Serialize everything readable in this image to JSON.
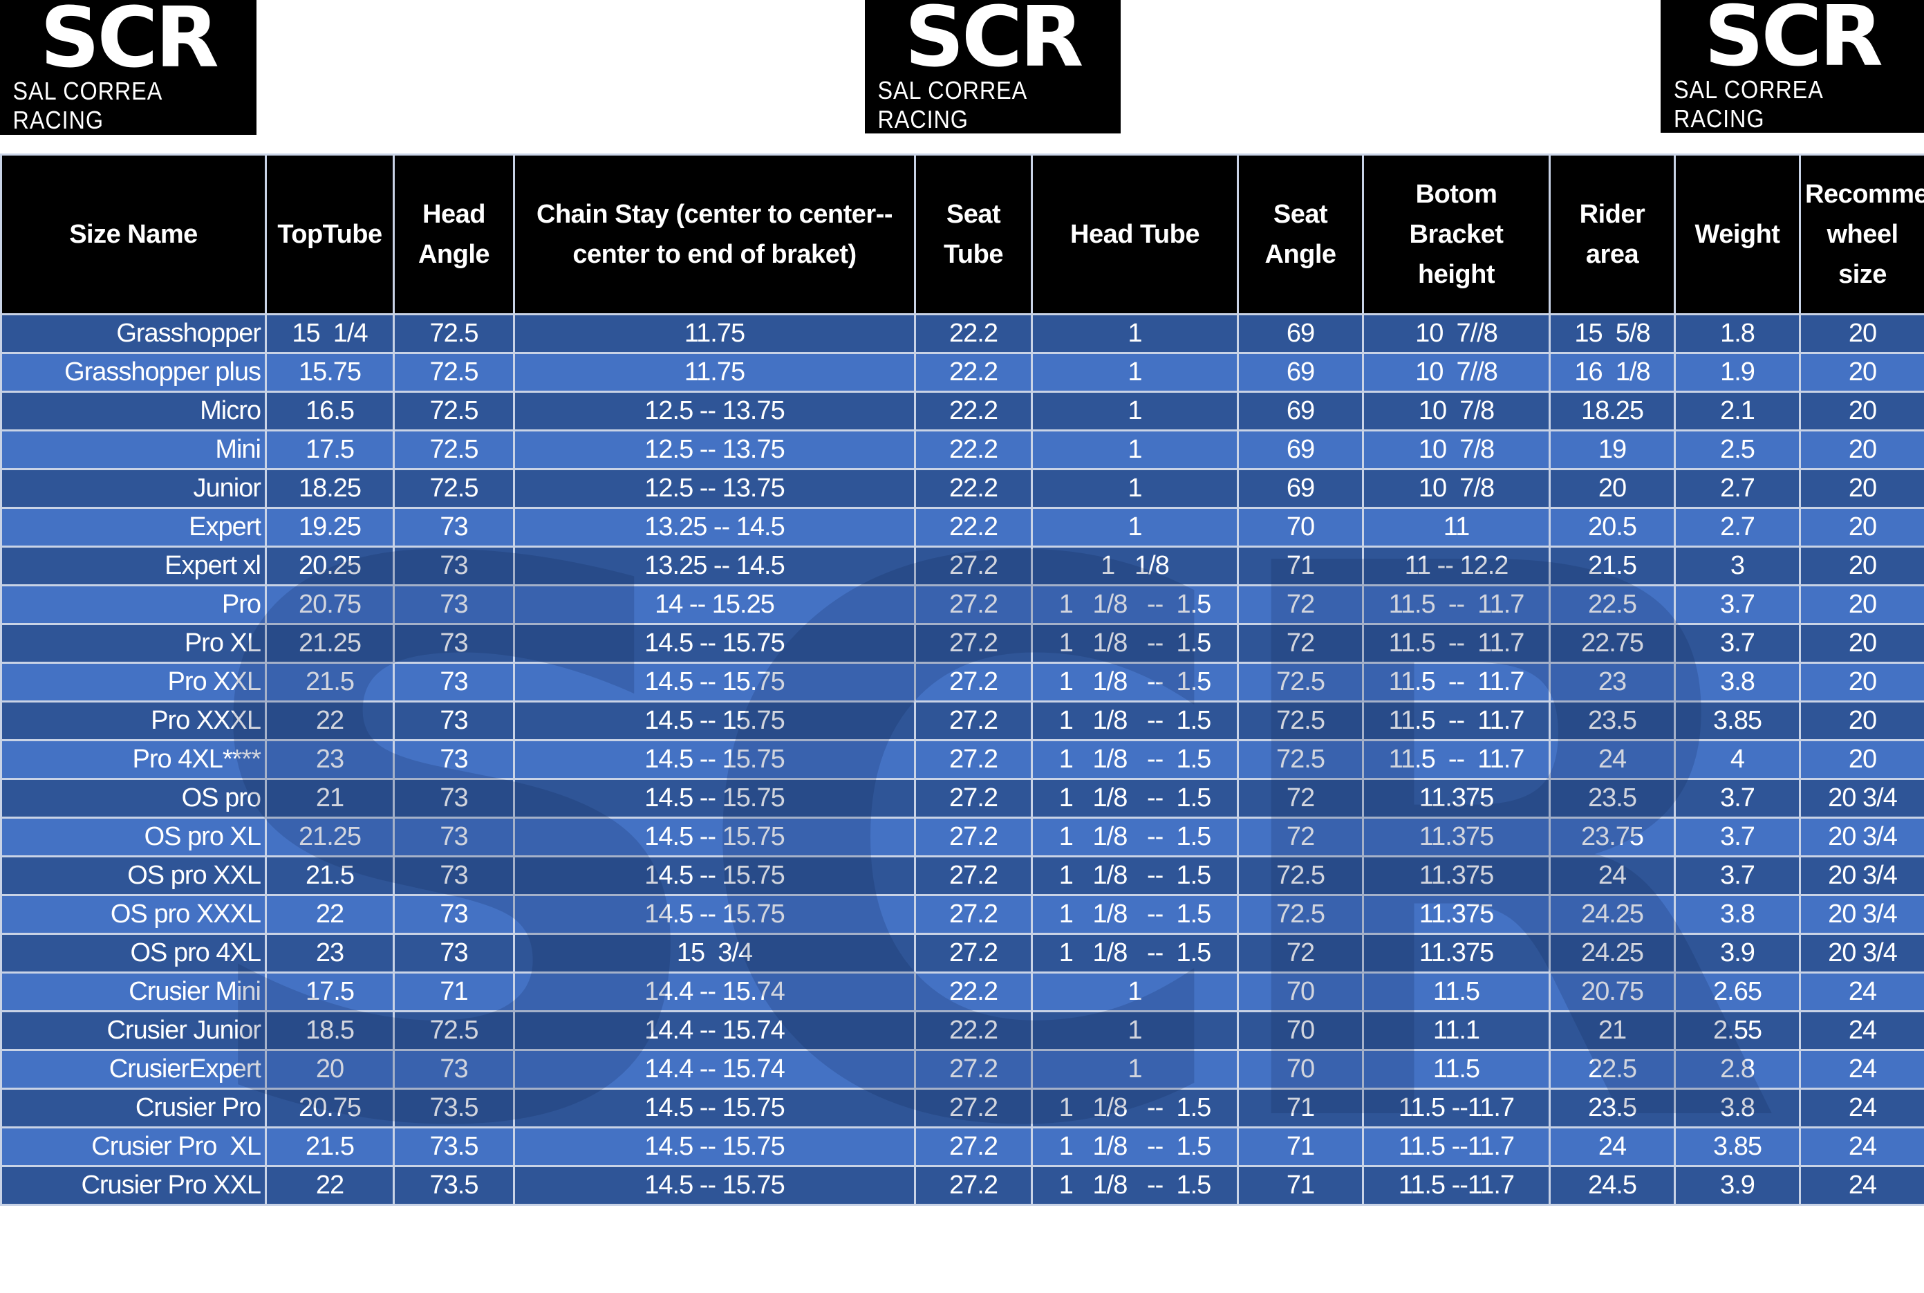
{
  "logos": [
    {
      "mark": "SCR",
      "text": "SAL CORREA RACING"
    },
    {
      "mark": "SCR",
      "text": "SAL CORREA RACING"
    },
    {
      "mark": "SCR",
      "text": "SAL CORREA RACING"
    }
  ],
  "colors": {
    "header_bg": "#000000",
    "row_dark": "#2f5597",
    "row_light": "#4472c4",
    "text": "#ffffff"
  },
  "table": {
    "headers": [
      "Size Name",
      "TopTube",
      "Head Angle",
      "Chain Stay (center to center--center to end of braket)",
      "Seat Tube",
      "Head Tube",
      "Seat Angle",
      "Botom Bracket height",
      "Rider area",
      "Weight",
      "Recommended wheel size"
    ],
    "rows": [
      [
        "Grasshopper",
        "15  1/4",
        "72.5",
        "11.75",
        "22.2",
        "1",
        "69",
        "10  7//8",
        "15  5/8",
        "1.8",
        "20"
      ],
      [
        "Grasshopper plus",
        "15.75",
        "72.5",
        "11.75",
        "22.2",
        "1",
        "69",
        "10  7//8",
        "16  1/8",
        "1.9",
        "20"
      ],
      [
        "Micro",
        "16.5",
        "72.5",
        "12.5 -- 13.75",
        "22.2",
        "1",
        "69",
        "10  7/8",
        "18.25",
        "2.1",
        "20"
      ],
      [
        "Mini",
        "17.5",
        "72.5",
        "12.5 -- 13.75",
        "22.2",
        "1",
        "69",
        "10  7/8",
        "19",
        "2.5",
        "20"
      ],
      [
        "Junior",
        "18.25",
        "72.5",
        "12.5 -- 13.75",
        "22.2",
        "1",
        "69",
        "10  7/8",
        "20",
        "2.7",
        "20"
      ],
      [
        "Expert",
        "19.25",
        "73",
        "13.25 -- 14.5",
        "22.2",
        "1",
        "70",
        "11",
        "20.5",
        "2.7",
        "20"
      ],
      [
        "Expert xl",
        "20.25",
        "73",
        "13.25 -- 14.5",
        "27.2",
        "1   1/8",
        "71",
        "11 -- 12.2",
        "21.5",
        "3",
        "20"
      ],
      [
        "Pro",
        "20.75",
        "73",
        "14 -- 15.25",
        "27.2",
        "1   1/8   --  1.5",
        "72",
        "11.5  --  11.7",
        "22.5",
        "3.7",
        "20"
      ],
      [
        "Pro XL",
        "21.25",
        "73",
        "14.5 -- 15.75",
        "27.2",
        "1   1/8   --  1.5",
        "72",
        "11.5  --  11.7",
        "22.75",
        "3.7",
        "20"
      ],
      [
        "Pro XXL",
        "21.5",
        "73",
        "14.5 -- 15.75",
        "27.2",
        "1   1/8   --  1.5",
        "72.5",
        "11.5  --  11.7",
        "23",
        "3.8",
        "20"
      ],
      [
        "Pro XXXL",
        "22",
        "73",
        "14.5 -- 15.75",
        "27.2",
        "1   1/8   --  1.5",
        "72.5",
        "11.5  --  11.7",
        "23.5",
        "3.85",
        "20"
      ],
      [
        "Pro 4XL****",
        "23",
        "73",
        "14.5 -- 15.75",
        "27.2",
        "1   1/8   --  1.5",
        "72.5",
        "11.5  --  11.7",
        "24",
        "4",
        "20"
      ],
      [
        "OS pro",
        "21",
        "73",
        "14.5 -- 15.75",
        "27.2",
        "1   1/8   --  1.5",
        "72",
        "11.375",
        "23.5",
        "3.7",
        "20 3/4"
      ],
      [
        "OS pro XL",
        "21.25",
        "73",
        "14.5 -- 15.75",
        "27.2",
        "1   1/8   --  1.5",
        "72",
        "11.375",
        "23.75",
        "3.7",
        "20 3/4"
      ],
      [
        "OS pro XXL",
        "21.5",
        "73",
        "14.5 -- 15.75",
        "27.2",
        "1   1/8   --  1.5",
        "72.5",
        "11.375",
        "24",
        "3.7",
        "20 3/4"
      ],
      [
        "OS pro XXXL",
        "22",
        "73",
        "14.5 -- 15.75",
        "27.2",
        "1   1/8   --  1.5",
        "72.5",
        "11.375",
        "24.25",
        "3.8",
        "20 3/4"
      ],
      [
        "OS pro 4XL",
        "23",
        "73",
        "15  3/4",
        "27.2",
        "1   1/8   --  1.5",
        "72",
        "11.375",
        "24.25",
        "3.9",
        "20 3/4"
      ],
      [
        "Crusier Mini",
        "17.5",
        "71",
        "14.4 -- 15.74",
        "22.2",
        "1",
        "70",
        "11.5",
        "20.75",
        "2.65",
        "24"
      ],
      [
        "Crusier Junior",
        "18.5",
        "72.5",
        "14.4 -- 15.74",
        "22.2",
        "1",
        "70",
        "11.1",
        "21",
        "2.55",
        "24"
      ],
      [
        "CrusierExpert",
        "20",
        "73",
        "14.4 -- 15.74",
        "27.2",
        "1",
        "70",
        "11.5",
        "22.5",
        "2.8",
        "24"
      ],
      [
        "Crusier Pro",
        "20.75",
        "73.5",
        "14.5 -- 15.75",
        "27.2",
        "1   1/8   --  1.5",
        "71",
        "11.5 --11.7",
        "23.5",
        "3.8",
        "24"
      ],
      [
        "Crusier Pro  XL",
        "21.5",
        "73.5",
        "14.5 -- 15.75",
        "27.2",
        "1   1/8   --  1.5",
        "71",
        "11.5 --11.7",
        "24",
        "3.85",
        "24"
      ],
      [
        "Crusier Pro XXL",
        "22",
        "73.5",
        "14.5 -- 15.75",
        "27.2",
        "1   1/8   --  1.5",
        "71",
        "11.5 --11.7",
        "24.5",
        "3.9",
        "24"
      ]
    ]
  }
}
